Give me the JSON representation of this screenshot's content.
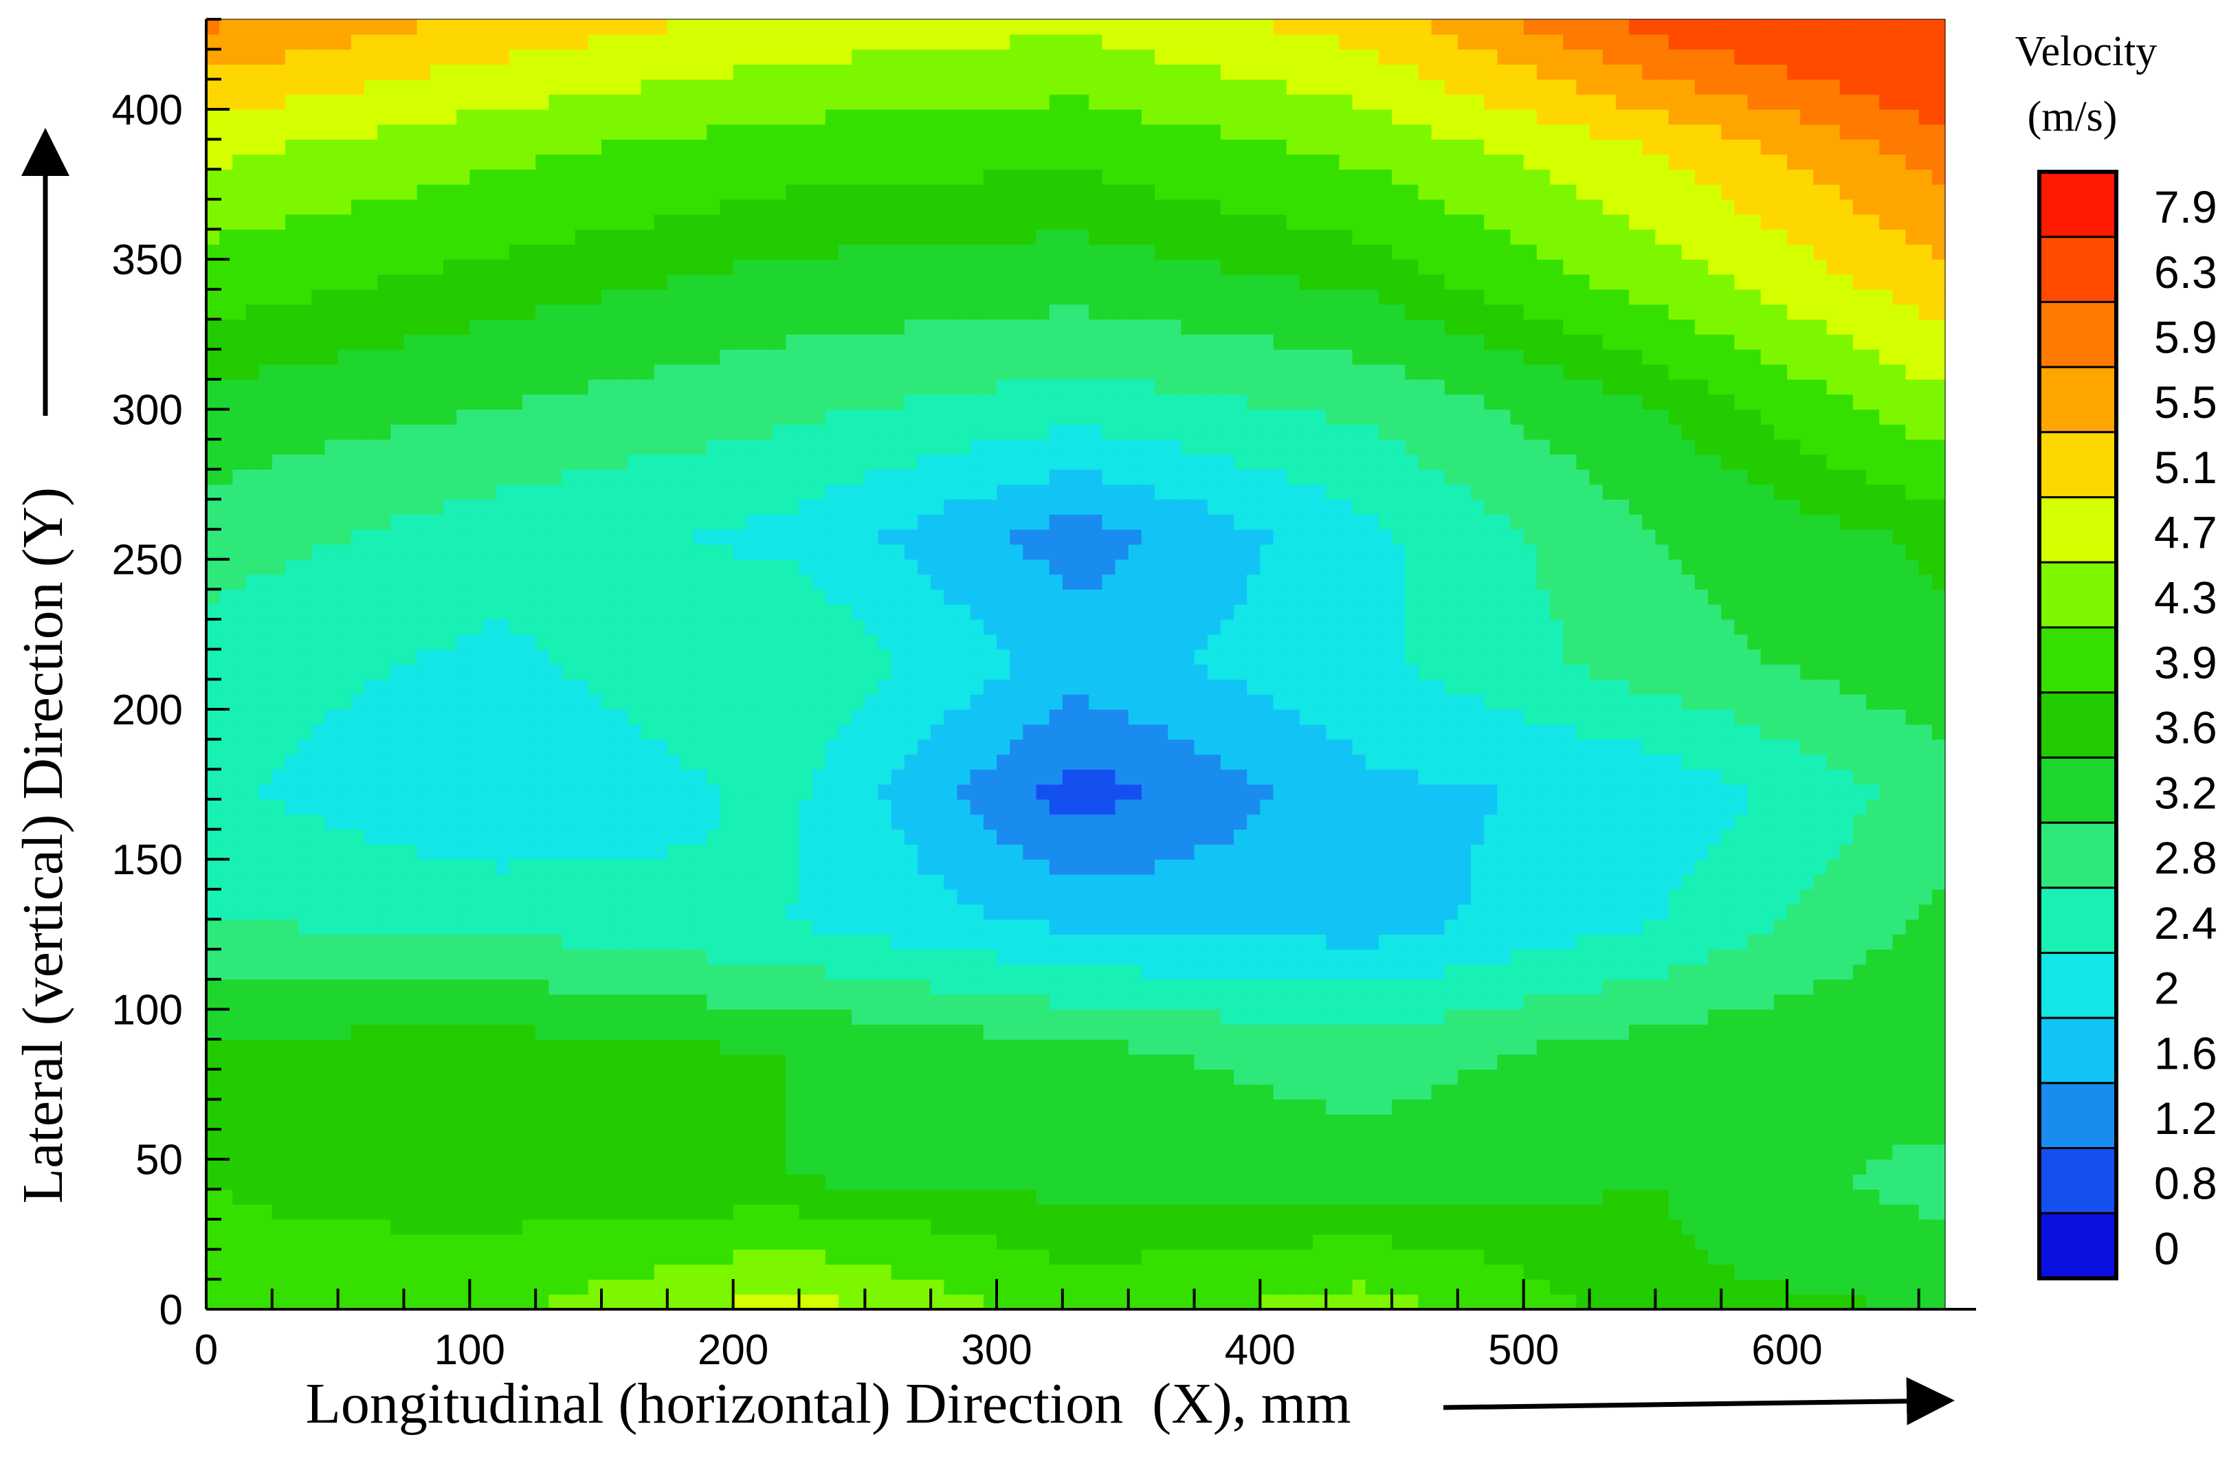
{
  "chart_data": {
    "type": "heatmap",
    "subtype": "filled-contour",
    "xlabel": "Longitudinal (horizontal) Direction  (X), mm",
    "ylabel": "Lateral (vertical) Direction (Y)",
    "xlim": [
      0,
      660
    ],
    "ylim": [
      0,
      430
    ],
    "x_ticks": [
      "0",
      "100",
      "200",
      "300",
      "400",
      "500",
      "600"
    ],
    "y_ticks": [
      "0",
      "50",
      "100",
      "150",
      "200",
      "250",
      "300",
      "350",
      "400"
    ],
    "colorbar": {
      "title": "Velocity",
      "unit": "(m/s)",
      "levels": [
        "7.9",
        "6.3",
        "5.9",
        "5.5",
        "5.1",
        "4.7",
        "4.3",
        "3.9",
        "3.6",
        "3.2",
        "2.8",
        "2.4",
        "2",
        "1.6",
        "1.2",
        "0.8",
        "0"
      ],
      "colors": [
        "#ff1a00",
        "#ff4b00",
        "#ff7a00",
        "#ffa500",
        "#ffd700",
        "#d4ff00",
        "#7cf700",
        "#35e000",
        "#22cc00",
        "#1fd62e",
        "#2ee87a",
        "#18f0b4",
        "#12e6e6",
        "#12c4f5",
        "#1a8cf0",
        "#1450f0",
        "#0a10e0"
      ]
    },
    "x": [
      0,
      110,
      220,
      330,
      440,
      550,
      660
    ],
    "y": [
      0,
      43,
      86,
      129,
      172,
      215,
      258,
      301,
      344,
      387,
      430
    ],
    "values": [
      [
        4.0,
        4.2,
        4.9,
        4.1,
        4.5,
        3.7,
        3.6
      ],
      [
        3.9,
        3.7,
        3.6,
        3.5,
        3.4,
        3.6,
        3.0
      ],
      [
        3.7,
        3.8,
        3.6,
        3.3,
        3.0,
        3.4,
        3.6
      ],
      [
        2.8,
        2.7,
        2.4,
        1.9,
        1.8,
        2.4,
        3.3
      ],
      [
        2.5,
        2.0,
        2.5,
        1.0,
        1.9,
        2.1,
        3.0
      ],
      [
        2.6,
        2.3,
        2.8,
        1.8,
        2.3,
        3.0,
        3.5
      ],
      [
        3.0,
        2.6,
        2.3,
        1.4,
        2.3,
        3.2,
        3.7
      ],
      [
        3.5,
        3.2,
        2.9,
        2.6,
        2.9,
        3.6,
        4.6
      ],
      [
        4.1,
        3.8,
        3.5,
        3.4,
        3.7,
        4.5,
        5.4
      ],
      [
        4.8,
        4.4,
        4.1,
        4.0,
        4.4,
        5.1,
        6.1
      ],
      [
        6.0,
        5.4,
        5.0,
        4.8,
        5.3,
        6.5,
        7.2
      ]
    ]
  }
}
